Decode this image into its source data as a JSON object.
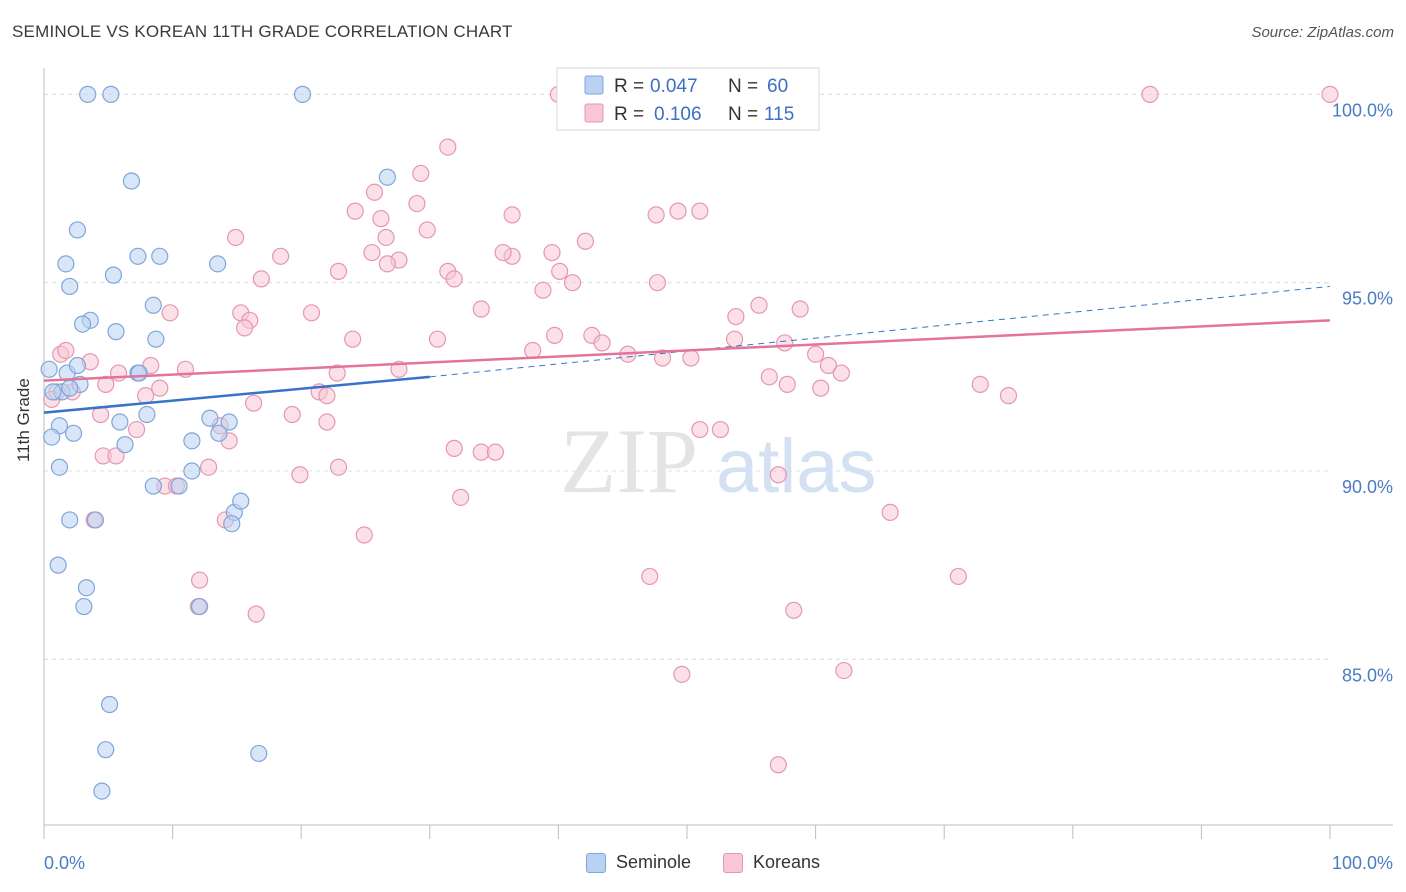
{
  "header": {
    "title": "SEMINOLE VS KOREAN 11TH GRADE CORRELATION CHART",
    "source": "Source: ZipAtlas.com"
  },
  "watermark": {
    "zip": "ZIP",
    "atlas": "atlas"
  },
  "colors": {
    "seminole_fill": "#b9d2f3",
    "seminole_stroke": "#7ea6db",
    "seminole_line": "#3574c8",
    "koreans_fill": "#f8c6d6",
    "koreans_stroke": "#e597b1",
    "koreans_line": "#e4739a",
    "tick_label": "#4a7cc4"
  },
  "legend": {
    "rows": [
      {
        "r_label": "R =",
        "r_value": "0.047",
        "n_label": "N =",
        "n_value": "60"
      },
      {
        "r_label": "R =",
        "r_value": "0.106",
        "n_label": "N =",
        "n_value": "115"
      }
    ]
  },
  "bottom_legend": {
    "seminole": "Seminole",
    "koreans": "Koreans"
  },
  "chart_data": {
    "type": "scatter",
    "ylabel": "11th Grade",
    "xlim": [
      0,
      100
    ],
    "ylim": [
      80.6,
      100.7
    ],
    "x_tick_labels": [
      "0.0%",
      "100.0%"
    ],
    "y_ticks": [
      {
        "value": 85,
        "label": "85.0%"
      },
      {
        "value": 90,
        "label": "90.0%"
      },
      {
        "value": 95,
        "label": "95.0%"
      },
      {
        "value": 100,
        "label": "100.0%"
      }
    ],
    "grid": true,
    "series": [
      {
        "name": "Seminole",
        "trend": {
          "x0": 0,
          "y0": 91.55,
          "x1": 30,
          "y1": 92.5,
          "dash_to_x": 100,
          "dash_to_y": 94.9
        },
        "points": [
          [
            3.4,
            100.0
          ],
          [
            5.2,
            100.0
          ],
          [
            20.1,
            100.0
          ],
          [
            26.7,
            97.8
          ],
          [
            6.8,
            97.7
          ],
          [
            2.6,
            96.4
          ],
          [
            1.7,
            95.5
          ],
          [
            7.3,
            95.7
          ],
          [
            9.0,
            95.7
          ],
          [
            13.5,
            95.5
          ],
          [
            5.4,
            95.2
          ],
          [
            2.0,
            94.9
          ],
          [
            8.5,
            94.4
          ],
          [
            3.6,
            94.0
          ],
          [
            3.0,
            93.9
          ],
          [
            5.6,
            93.7
          ],
          [
            8.7,
            93.5
          ],
          [
            0.4,
            92.7
          ],
          [
            1.8,
            92.6
          ],
          [
            2.6,
            92.8
          ],
          [
            7.3,
            92.6
          ],
          [
            7.4,
            92.6
          ],
          [
            2.8,
            92.3
          ],
          [
            1.4,
            92.1
          ],
          [
            0.7,
            92.1
          ],
          [
            2.0,
            92.2
          ],
          [
            8.0,
            91.5
          ],
          [
            12.9,
            91.4
          ],
          [
            14.4,
            91.3
          ],
          [
            1.2,
            91.2
          ],
          [
            2.3,
            91.0
          ],
          [
            0.6,
            90.9
          ],
          [
            5.9,
            91.3
          ],
          [
            11.5,
            90.8
          ],
          [
            13.6,
            91.0
          ],
          [
            6.3,
            90.7
          ],
          [
            1.2,
            90.1
          ],
          [
            8.5,
            89.6
          ],
          [
            11.5,
            90.0
          ],
          [
            10.5,
            89.6
          ],
          [
            14.8,
            88.9
          ],
          [
            15.3,
            89.2
          ],
          [
            14.6,
            88.6
          ],
          [
            2.0,
            88.7
          ],
          [
            4.0,
            88.7
          ],
          [
            1.1,
            87.5
          ],
          [
            3.3,
            86.9
          ],
          [
            3.1,
            86.4
          ],
          [
            12.1,
            86.4
          ],
          [
            5.1,
            83.8
          ],
          [
            4.8,
            82.6
          ],
          [
            16.7,
            82.5
          ],
          [
            4.5,
            81.5
          ]
        ]
      },
      {
        "name": "Koreans",
        "trend": {
          "x0": 0,
          "y0": 92.4,
          "x1": 100,
          "y1": 94.0
        },
        "points": [
          [
            40.0,
            100.0
          ],
          [
            86.0,
            100.0
          ],
          [
            100.0,
            100.0
          ],
          [
            31.4,
            98.6
          ],
          [
            29.3,
            97.9
          ],
          [
            25.7,
            97.4
          ],
          [
            29.0,
            97.1
          ],
          [
            24.2,
            96.9
          ],
          [
            26.2,
            96.7
          ],
          [
            51.0,
            96.9
          ],
          [
            47.6,
            96.8
          ],
          [
            49.3,
            96.9
          ],
          [
            36.4,
            96.8
          ],
          [
            29.8,
            96.4
          ],
          [
            26.6,
            96.2
          ],
          [
            14.9,
            96.2
          ],
          [
            18.4,
            95.7
          ],
          [
            25.5,
            95.8
          ],
          [
            27.6,
            95.6
          ],
          [
            36.4,
            95.7
          ],
          [
            35.7,
            95.8
          ],
          [
            39.5,
            95.8
          ],
          [
            42.1,
            96.1
          ],
          [
            22.9,
            95.3
          ],
          [
            26.7,
            95.5
          ],
          [
            31.4,
            95.3
          ],
          [
            40.1,
            95.3
          ],
          [
            16.9,
            95.1
          ],
          [
            31.9,
            95.1
          ],
          [
            38.8,
            94.8
          ],
          [
            41.1,
            95.0
          ],
          [
            47.7,
            95.0
          ],
          [
            9.8,
            94.2
          ],
          [
            15.3,
            94.2
          ],
          [
            20.8,
            94.2
          ],
          [
            34.0,
            94.3
          ],
          [
            53.8,
            94.1
          ],
          [
            55.6,
            94.4
          ],
          [
            58.8,
            94.3
          ],
          [
            16.0,
            94.0
          ],
          [
            15.6,
            93.8
          ],
          [
            24.0,
            93.5
          ],
          [
            30.6,
            93.5
          ],
          [
            39.7,
            93.6
          ],
          [
            42.6,
            93.6
          ],
          [
            43.4,
            93.4
          ],
          [
            53.7,
            93.5
          ],
          [
            57.6,
            93.4
          ],
          [
            38.0,
            93.2
          ],
          [
            45.4,
            93.1
          ],
          [
            48.1,
            93.0
          ],
          [
            50.3,
            93.0
          ],
          [
            60.0,
            93.1
          ],
          [
            1.3,
            93.1
          ],
          [
            1.7,
            93.2
          ],
          [
            3.6,
            92.9
          ],
          [
            8.3,
            92.8
          ],
          [
            11.0,
            92.7
          ],
          [
            22.8,
            92.6
          ],
          [
            27.6,
            92.7
          ],
          [
            56.4,
            92.5
          ],
          [
            61.0,
            92.8
          ],
          [
            62.0,
            92.6
          ],
          [
            5.8,
            92.6
          ],
          [
            1.0,
            92.1
          ],
          [
            4.8,
            92.3
          ],
          [
            9.0,
            92.2
          ],
          [
            21.4,
            92.1
          ],
          [
            22.0,
            92.0
          ],
          [
            57.8,
            92.3
          ],
          [
            60.4,
            92.2
          ],
          [
            72.8,
            92.3
          ],
          [
            75.0,
            92.0
          ],
          [
            0.6,
            91.9
          ],
          [
            2.2,
            92.1
          ],
          [
            7.9,
            92.0
          ],
          [
            16.3,
            91.8
          ],
          [
            19.3,
            91.5
          ],
          [
            4.4,
            91.5
          ],
          [
            7.2,
            91.1
          ],
          [
            13.7,
            91.2
          ],
          [
            22.0,
            91.3
          ],
          [
            51.0,
            91.1
          ],
          [
            52.6,
            91.1
          ],
          [
            14.4,
            90.8
          ],
          [
            31.9,
            90.6
          ],
          [
            34.0,
            90.5
          ],
          [
            35.1,
            90.5
          ],
          [
            4.6,
            90.4
          ],
          [
            5.6,
            90.4
          ],
          [
            22.9,
            90.1
          ],
          [
            12.8,
            90.1
          ],
          [
            9.4,
            89.6
          ],
          [
            10.3,
            89.6
          ],
          [
            19.9,
            89.9
          ],
          [
            57.1,
            89.9
          ],
          [
            65.8,
            88.9
          ],
          [
            32.4,
            89.3
          ],
          [
            14.1,
            88.7
          ],
          [
            3.9,
            88.7
          ],
          [
            24.9,
            88.3
          ],
          [
            47.1,
            87.2
          ],
          [
            71.1,
            87.2
          ],
          [
            12.1,
            87.1
          ],
          [
            16.5,
            86.2
          ],
          [
            58.3,
            86.3
          ],
          [
            49.6,
            84.6
          ],
          [
            62.2,
            84.7
          ],
          [
            57.1,
            82.2
          ],
          [
            12.0,
            86.4
          ]
        ]
      }
    ]
  }
}
